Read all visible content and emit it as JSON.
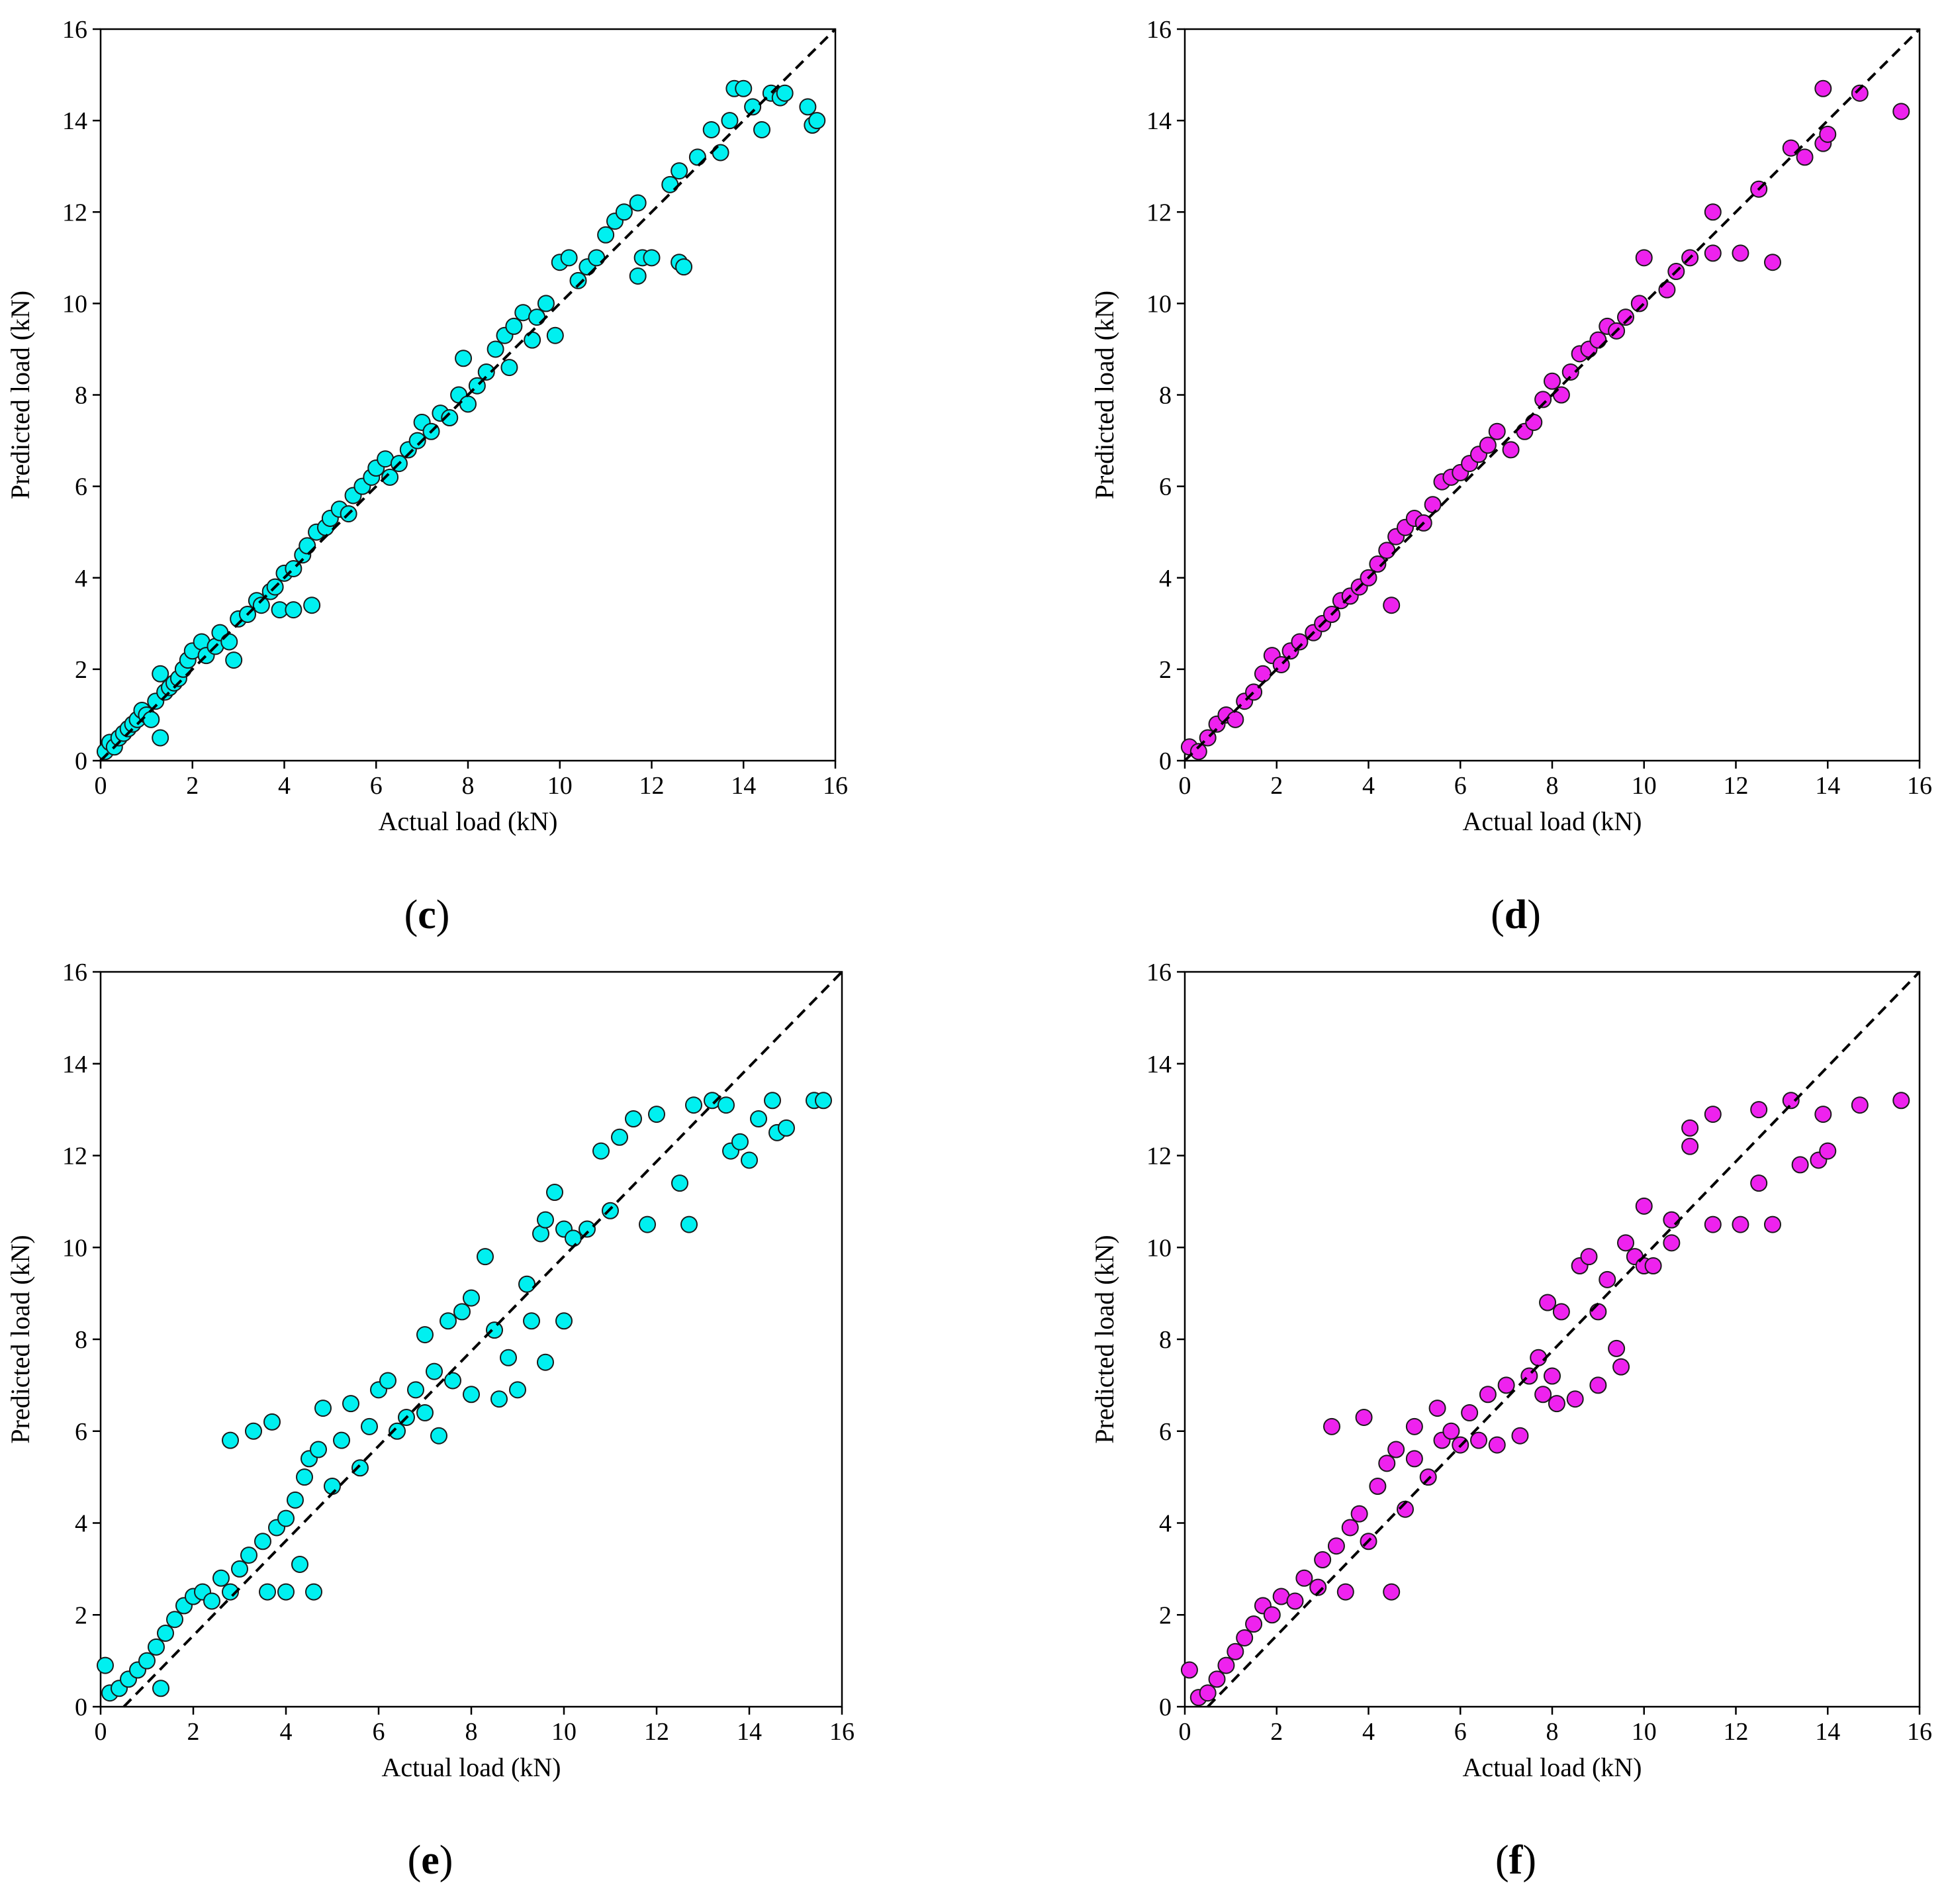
{
  "figure": {
    "background": "#ffffff"
  },
  "chart_data": [
    {
      "id": "c",
      "type": "scatter",
      "panel_label": "c",
      "xlabel": "Actual load (kN)",
      "ylabel": "Predicted load (kN)",
      "xlim": [
        0,
        16
      ],
      "ylim": [
        0,
        16
      ],
      "xticks": [
        0,
        2,
        4,
        6,
        8,
        10,
        12,
        14,
        16
      ],
      "yticks": [
        0,
        2,
        4,
        6,
        8,
        10,
        12,
        14,
        16
      ],
      "marker_color": "#00f0f0",
      "reference_line": {
        "style": "dashed",
        "from": [
          0,
          0
        ],
        "to": [
          16,
          16
        ]
      },
      "points": [
        [
          0.1,
          0.2
        ],
        [
          0.2,
          0.4
        ],
        [
          0.3,
          0.3
        ],
        [
          0.4,
          0.5
        ],
        [
          0.5,
          0.6
        ],
        [
          0.6,
          0.7
        ],
        [
          0.7,
          0.8
        ],
        [
          0.8,
          0.9
        ],
        [
          0.9,
          1.1
        ],
        [
          1.0,
          1.0
        ],
        [
          1.1,
          0.9
        ],
        [
          1.2,
          1.3
        ],
        [
          1.3,
          1.9
        ],
        [
          1.3,
          0.5
        ],
        [
          1.4,
          1.5
        ],
        [
          1.5,
          1.6
        ],
        [
          1.6,
          1.7
        ],
        [
          1.7,
          1.8
        ],
        [
          1.8,
          2.0
        ],
        [
          1.9,
          2.2
        ],
        [
          2.0,
          2.4
        ],
        [
          2.2,
          2.6
        ],
        [
          2.3,
          2.3
        ],
        [
          2.5,
          2.5
        ],
        [
          2.6,
          2.8
        ],
        [
          2.8,
          2.6
        ],
        [
          2.9,
          2.2
        ],
        [
          3.0,
          3.1
        ],
        [
          3.2,
          3.2
        ],
        [
          3.4,
          3.5
        ],
        [
          3.5,
          3.4
        ],
        [
          3.7,
          3.7
        ],
        [
          3.8,
          3.8
        ],
        [
          3.9,
          3.3
        ],
        [
          4.0,
          4.1
        ],
        [
          4.2,
          4.2
        ],
        [
          4.2,
          3.3
        ],
        [
          4.4,
          4.5
        ],
        [
          4.5,
          4.7
        ],
        [
          4.6,
          3.4
        ],
        [
          4.7,
          5.0
        ],
        [
          4.9,
          5.1
        ],
        [
          5.0,
          5.3
        ],
        [
          5.2,
          5.5
        ],
        [
          5.4,
          5.4
        ],
        [
          5.5,
          5.8
        ],
        [
          5.7,
          6.0
        ],
        [
          5.9,
          6.2
        ],
        [
          6.0,
          6.4
        ],
        [
          6.2,
          6.6
        ],
        [
          6.3,
          6.2
        ],
        [
          6.5,
          6.5
        ],
        [
          6.7,
          6.8
        ],
        [
          6.9,
          7.0
        ],
        [
          7.0,
          7.4
        ],
        [
          7.2,
          7.2
        ],
        [
          7.4,
          7.6
        ],
        [
          7.6,
          7.5
        ],
        [
          7.8,
          8.0
        ],
        [
          7.9,
          8.8
        ],
        [
          8.0,
          7.8
        ],
        [
          8.2,
          8.2
        ],
        [
          8.4,
          8.5
        ],
        [
          8.6,
          9.0
        ],
        [
          8.8,
          9.3
        ],
        [
          8.9,
          8.6
        ],
        [
          9.0,
          9.5
        ],
        [
          9.2,
          9.8
        ],
        [
          9.4,
          9.2
        ],
        [
          9.5,
          9.7
        ],
        [
          9.7,
          10.0
        ],
        [
          9.9,
          9.3
        ],
        [
          10.0,
          10.9
        ],
        [
          10.2,
          11.0
        ],
        [
          10.4,
          10.5
        ],
        [
          10.6,
          10.8
        ],
        [
          10.8,
          11.0
        ],
        [
          11.0,
          11.5
        ],
        [
          11.2,
          11.8
        ],
        [
          11.4,
          12.0
        ],
        [
          11.7,
          12.2
        ],
        [
          11.8,
          11.0
        ],
        [
          11.7,
          10.6
        ],
        [
          12.0,
          11.0
        ],
        [
          12.4,
          12.6
        ],
        [
          12.6,
          12.9
        ],
        [
          12.6,
          10.9
        ],
        [
          12.7,
          10.8
        ],
        [
          13.0,
          13.2
        ],
        [
          13.3,
          13.8
        ],
        [
          13.5,
          13.3
        ],
        [
          13.7,
          14.0
        ],
        [
          13.8,
          14.7
        ],
        [
          14.0,
          14.7
        ],
        [
          14.2,
          14.3
        ],
        [
          14.4,
          13.8
        ],
        [
          14.6,
          14.6
        ],
        [
          14.8,
          14.5
        ],
        [
          15.5,
          13.9
        ],
        [
          15.6,
          14.0
        ],
        [
          15.4,
          14.3
        ],
        [
          14.9,
          14.6
        ]
      ]
    },
    {
      "id": "d",
      "type": "scatter",
      "panel_label": "d",
      "xlabel": "Actual load (kN)",
      "ylabel": "Predicted load (kN)",
      "xlim": [
        0,
        16
      ],
      "ylim": [
        0,
        16
      ],
      "xticks": [
        0,
        2,
        4,
        6,
        8,
        10,
        12,
        14,
        16
      ],
      "yticks": [
        0,
        2,
        4,
        6,
        8,
        10,
        12,
        14,
        16
      ],
      "marker_color": "#ee22ee",
      "reference_line": {
        "style": "dashed",
        "from": [
          0,
          0
        ],
        "to": [
          16,
          16
        ]
      },
      "points": [
        [
          0.1,
          0.3
        ],
        [
          0.3,
          0.2
        ],
        [
          0.5,
          0.5
        ],
        [
          0.7,
          0.8
        ],
        [
          0.9,
          1.0
        ],
        [
          1.1,
          0.9
        ],
        [
          1.3,
          1.3
        ],
        [
          1.5,
          1.5
        ],
        [
          1.7,
          1.9
        ],
        [
          1.9,
          2.3
        ],
        [
          2.1,
          2.1
        ],
        [
          2.3,
          2.4
        ],
        [
          2.5,
          2.6
        ],
        [
          2.8,
          2.8
        ],
        [
          3.0,
          3.0
        ],
        [
          3.2,
          3.2
        ],
        [
          3.4,
          3.5
        ],
        [
          3.6,
          3.6
        ],
        [
          3.8,
          3.8
        ],
        [
          4.0,
          4.0
        ],
        [
          4.2,
          4.3
        ],
        [
          4.4,
          4.6
        ],
        [
          4.5,
          3.4
        ],
        [
          4.6,
          4.9
        ],
        [
          4.8,
          5.1
        ],
        [
          5.0,
          5.3
        ],
        [
          5.2,
          5.2
        ],
        [
          5.4,
          5.6
        ],
        [
          5.6,
          6.1
        ],
        [
          5.8,
          6.2
        ],
        [
          6.0,
          6.3
        ],
        [
          6.2,
          6.5
        ],
        [
          6.4,
          6.7
        ],
        [
          6.6,
          6.9
        ],
        [
          6.8,
          7.2
        ],
        [
          7.1,
          6.8
        ],
        [
          7.4,
          7.2
        ],
        [
          7.6,
          7.4
        ],
        [
          7.8,
          7.9
        ],
        [
          8.0,
          8.3
        ],
        [
          8.2,
          8.0
        ],
        [
          8.4,
          8.5
        ],
        [
          8.6,
          8.9
        ],
        [
          8.8,
          9.0
        ],
        [
          9.0,
          9.2
        ],
        [
          9.2,
          9.5
        ],
        [
          9.4,
          9.4
        ],
        [
          9.6,
          9.7
        ],
        [
          9.9,
          10.0
        ],
        [
          10.0,
          11.0
        ],
        [
          10.5,
          10.3
        ],
        [
          10.7,
          10.7
        ],
        [
          11.0,
          11.0
        ],
        [
          11.5,
          12.0
        ],
        [
          11.5,
          11.1
        ],
        [
          12.1,
          11.1
        ],
        [
          12.5,
          12.5
        ],
        [
          12.8,
          10.9
        ],
        [
          13.2,
          13.4
        ],
        [
          13.5,
          13.2
        ],
        [
          13.9,
          13.5
        ],
        [
          14.0,
          13.7
        ],
        [
          13.9,
          14.7
        ],
        [
          14.7,
          14.6
        ],
        [
          15.6,
          14.2
        ]
      ]
    },
    {
      "id": "e",
      "type": "scatter",
      "panel_label": "e",
      "xlabel": "Actual load (kN)",
      "ylabel": "Predicted load (kN)",
      "xlim": [
        0,
        16
      ],
      "ylim": [
        0,
        16
      ],
      "xticks": [
        0,
        2,
        4,
        6,
        8,
        10,
        12,
        14,
        16
      ],
      "yticks": [
        0,
        2,
        4,
        6,
        8,
        10,
        12,
        14,
        16
      ],
      "marker_color": "#00f0f0",
      "reference_line": {
        "style": "dashed",
        "from": [
          0.5,
          0
        ],
        "to": [
          16,
          16
        ]
      },
      "points": [
        [
          0.1,
          0.9
        ],
        [
          0.2,
          0.3
        ],
        [
          0.4,
          0.4
        ],
        [
          0.6,
          0.6
        ],
        [
          0.8,
          0.8
        ],
        [
          1.0,
          1.0
        ],
        [
          1.2,
          1.3
        ],
        [
          1.3,
          0.4
        ],
        [
          1.4,
          1.6
        ],
        [
          1.6,
          1.9
        ],
        [
          1.8,
          2.2
        ],
        [
          2.0,
          2.4
        ],
        [
          2.2,
          2.5
        ],
        [
          2.4,
          2.3
        ],
        [
          2.6,
          2.8
        ],
        [
          2.8,
          2.5
        ],
        [
          2.8,
          5.8
        ],
        [
          3.0,
          3.0
        ],
        [
          3.2,
          3.3
        ],
        [
          3.3,
          6.0
        ],
        [
          3.5,
          3.6
        ],
        [
          3.6,
          2.5
        ],
        [
          3.7,
          6.2
        ],
        [
          3.8,
          3.9
        ],
        [
          4.0,
          4.1
        ],
        [
          4.0,
          2.5
        ],
        [
          4.2,
          4.5
        ],
        [
          4.3,
          3.1
        ],
        [
          4.4,
          5.0
        ],
        [
          4.5,
          5.4
        ],
        [
          4.6,
          2.5
        ],
        [
          4.7,
          5.6
        ],
        [
          4.8,
          6.5
        ],
        [
          5.0,
          4.8
        ],
        [
          5.2,
          5.8
        ],
        [
          5.4,
          6.6
        ],
        [
          5.6,
          5.2
        ],
        [
          5.8,
          6.1
        ],
        [
          6.0,
          6.9
        ],
        [
          6.2,
          7.1
        ],
        [
          6.4,
          6.0
        ],
        [
          6.6,
          6.3
        ],
        [
          6.8,
          6.9
        ],
        [
          7.0,
          6.4
        ],
        [
          7.0,
          8.1
        ],
        [
          7.2,
          7.3
        ],
        [
          7.3,
          5.9
        ],
        [
          7.5,
          8.4
        ],
        [
          7.6,
          7.1
        ],
        [
          7.8,
          8.6
        ],
        [
          8.0,
          6.8
        ],
        [
          8.0,
          8.9
        ],
        [
          8.3,
          9.8
        ],
        [
          8.5,
          8.2
        ],
        [
          8.6,
          6.7
        ],
        [
          8.8,
          7.6
        ],
        [
          9.0,
          6.9
        ],
        [
          9.2,
          9.2
        ],
        [
          9.3,
          8.4
        ],
        [
          9.5,
          10.3
        ],
        [
          9.6,
          7.5
        ],
        [
          9.6,
          10.6
        ],
        [
          9.8,
          11.2
        ],
        [
          10.0,
          10.4
        ],
        [
          10.0,
          8.4
        ],
        [
          10.2,
          10.2
        ],
        [
          10.5,
          10.4
        ],
        [
          10.8,
          12.1
        ],
        [
          11.0,
          10.8
        ],
        [
          11.2,
          12.4
        ],
        [
          11.5,
          12.8
        ],
        [
          11.8,
          10.5
        ],
        [
          12.0,
          12.9
        ],
        [
          12.5,
          11.4
        ],
        [
          12.7,
          10.5
        ],
        [
          12.8,
          13.1
        ],
        [
          13.2,
          13.2
        ],
        [
          13.5,
          13.1
        ],
        [
          13.6,
          12.1
        ],
        [
          13.8,
          12.3
        ],
        [
          14.0,
          11.9
        ],
        [
          14.2,
          12.8
        ],
        [
          14.5,
          13.2
        ],
        [
          14.6,
          12.5
        ],
        [
          14.8,
          12.6
        ],
        [
          15.4,
          13.2
        ],
        [
          15.6,
          13.2
        ]
      ]
    },
    {
      "id": "f",
      "type": "scatter",
      "panel_label": "f",
      "xlabel": "Actual load (kN)",
      "ylabel": "Predicted load (kN)",
      "xlim": [
        0,
        16
      ],
      "ylim": [
        0,
        16
      ],
      "xticks": [
        0,
        2,
        4,
        6,
        8,
        10,
        12,
        14,
        16
      ],
      "yticks": [
        0,
        2,
        4,
        6,
        8,
        10,
        12,
        14,
        16
      ],
      "marker_color": "#ee22ee",
      "reference_line": {
        "style": "dashed",
        "from": [
          0.5,
          0
        ],
        "to": [
          16,
          16
        ]
      },
      "points": [
        [
          0.1,
          0.8
        ],
        [
          0.3,
          0.2
        ],
        [
          0.5,
          0.3
        ],
        [
          0.7,
          0.6
        ],
        [
          0.9,
          0.9
        ],
        [
          1.1,
          1.2
        ],
        [
          1.3,
          1.5
        ],
        [
          1.5,
          1.8
        ],
        [
          1.7,
          2.2
        ],
        [
          1.9,
          2.0
        ],
        [
          2.1,
          2.4
        ],
        [
          2.4,
          2.3
        ],
        [
          2.6,
          2.8
        ],
        [
          2.9,
          2.6
        ],
        [
          3.0,
          3.2
        ],
        [
          3.2,
          6.1
        ],
        [
          3.3,
          3.5
        ],
        [
          3.5,
          2.5
        ],
        [
          3.6,
          3.9
        ],
        [
          3.8,
          4.2
        ],
        [
          3.9,
          6.3
        ],
        [
          4.0,
          3.6
        ],
        [
          4.2,
          4.8
        ],
        [
          4.4,
          5.3
        ],
        [
          4.5,
          2.5
        ],
        [
          4.6,
          5.6
        ],
        [
          4.8,
          4.3
        ],
        [
          5.0,
          5.4
        ],
        [
          5.0,
          6.1
        ],
        [
          5.3,
          5.0
        ],
        [
          5.5,
          6.5
        ],
        [
          5.6,
          5.8
        ],
        [
          5.8,
          6.0
        ],
        [
          6.0,
          5.7
        ],
        [
          6.2,
          6.4
        ],
        [
          6.4,
          5.8
        ],
        [
          6.6,
          6.8
        ],
        [
          6.8,
          5.7
        ],
        [
          7.0,
          7.0
        ],
        [
          7.3,
          5.9
        ],
        [
          7.5,
          7.2
        ],
        [
          7.7,
          7.6
        ],
        [
          7.8,
          6.8
        ],
        [
          7.9,
          8.8
        ],
        [
          8.0,
          7.2
        ],
        [
          8.1,
          6.6
        ],
        [
          8.2,
          8.6
        ],
        [
          8.5,
          6.7
        ],
        [
          8.6,
          9.6
        ],
        [
          8.8,
          9.8
        ],
        [
          9.0,
          8.6
        ],
        [
          9.0,
          7.0
        ],
        [
          9.2,
          9.3
        ],
        [
          9.4,
          7.8
        ],
        [
          9.5,
          7.4
        ],
        [
          9.6,
          10.1
        ],
        [
          9.8,
          9.8
        ],
        [
          10.0,
          10.9
        ],
        [
          10.0,
          9.6
        ],
        [
          10.2,
          9.6
        ],
        [
          10.6,
          10.6
        ],
        [
          10.6,
          10.1
        ],
        [
          11.0,
          12.2
        ],
        [
          11.0,
          12.6
        ],
        [
          11.5,
          12.9
        ],
        [
          11.5,
          10.5
        ],
        [
          12.1,
          10.5
        ],
        [
          12.5,
          13.0
        ],
        [
          12.5,
          11.4
        ],
        [
          12.8,
          10.5
        ],
        [
          13.2,
          13.2
        ],
        [
          13.4,
          11.8
        ],
        [
          13.8,
          11.9
        ],
        [
          13.9,
          12.9
        ],
        [
          14.0,
          12.1
        ],
        [
          14.7,
          13.1
        ],
        [
          15.6,
          13.2
        ]
      ]
    }
  ]
}
